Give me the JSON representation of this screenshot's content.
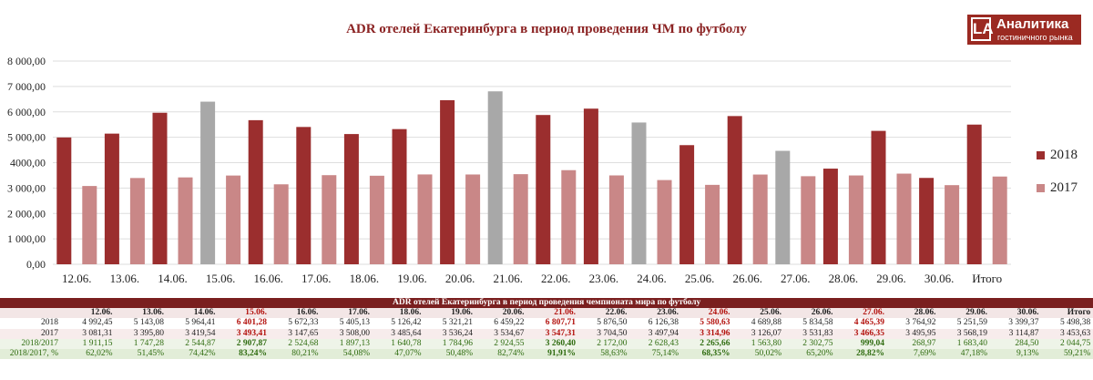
{
  "logo": {
    "mark": "LA",
    "name": "Аналитика",
    "subtitle": "гостиничного рынка"
  },
  "colors": {
    "y2018": "#9b2e2e",
    "y2017": "#c98787",
    "match_day": "#a8a8a8",
    "grid": "#dedede",
    "title": "#8b2323"
  },
  "chart_data": {
    "type": "bar",
    "title": "ADR отелей Екатеринбурга в период проведения ЧМ по футболу",
    "categories": [
      "12.06.",
      "13.06.",
      "14.06.",
      "15.06.",
      "16.06.",
      "17.06.",
      "18.06.",
      "19.06.",
      "20.06.",
      "21.06.",
      "22.06.",
      "23.06.",
      "24.06.",
      "25.06.",
      "26.06.",
      "27.06.",
      "28.06.",
      "29.06.",
      "30.06.",
      "Итого"
    ],
    "series": [
      {
        "name": "2018",
        "values": [
          4992.45,
          5143.08,
          5964.41,
          6401.28,
          5672.33,
          5405.13,
          5126.42,
          5321.21,
          6459.22,
          6807.71,
          5876.5,
          6126.38,
          5580.63,
          4689.88,
          5834.58,
          4465.39,
          3764.92,
          5251.59,
          3399.37,
          5498.38
        ]
      },
      {
        "name": "2017",
        "values": [
          3081.31,
          3395.8,
          3419.54,
          3493.41,
          3147.65,
          3508.0,
          3485.64,
          3536.24,
          3534.67,
          3547.31,
          3704.5,
          3497.94,
          3314.96,
          3126.07,
          3531.83,
          3466.35,
          3495.95,
          3568.19,
          3114.87,
          3453.63
        ]
      }
    ],
    "highlight_2018": [
      3,
      9,
      12,
      15
    ],
    "ylim": [
      0,
      8000
    ],
    "yticks": [
      "0,00",
      "1 000,00",
      "2 000,00",
      "3 000,00",
      "4000,00",
      "5 000,00",
      "6 000,00",
      "7 000,00",
      "8 000,00"
    ],
    "grid": true,
    "legend_position": "right"
  },
  "table": {
    "title": "ADR отелей Екатеринбурга в период проведения чемпионата мира по футболу",
    "headers": [
      "12.06.",
      "13.06.",
      "14.06.",
      "15.06.",
      "16.06.",
      "17.06.",
      "18.06.",
      "19.06.",
      "20.06.",
      "21.06.",
      "22.06.",
      "23.06.",
      "24.06.",
      "25.06.",
      "26.06.",
      "27.06.",
      "28.06.",
      "29.06.",
      "30.06.",
      "Итого"
    ],
    "highlight_cols": [
      3,
      9,
      12,
      15
    ],
    "rows": [
      {
        "label": "2018",
        "cells": [
          "4 992,45",
          "5 143,08",
          "5 964,41",
          "6 401,28",
          "5 672,33",
          "5 405,13",
          "5 126,42",
          "5 321,21",
          "6 459,22",
          "6 807,71",
          "5 876,50",
          "6 126,38",
          "5 580,63",
          "4 689,88",
          "5 834,58",
          "4 465,39",
          "3 764,92",
          "5 251,59",
          "3 399,37",
          "5 498,38"
        ]
      },
      {
        "label": "2017",
        "cells": [
          "3 081,31",
          "3 395,80",
          "3 419,54",
          "3 493,41",
          "3 147,65",
          "3 508,00",
          "3 485,64",
          "3 536,24",
          "3 534,67",
          "3 547,31",
          "3 704,50",
          "3 497,94",
          "3 314,96",
          "3 126,07",
          "3 531,83",
          "3 466,35",
          "3 495,95",
          "3 568,19",
          "3 114,87",
          "3 453,63"
        ]
      },
      {
        "label": "2018/2017",
        "cells": [
          "1 911,15",
          "1 747,28",
          "2 544,87",
          "2 907,87",
          "2 524,68",
          "1 897,13",
          "1 640,78",
          "1 784,96",
          "2 924,55",
          "3 260,40",
          "2 172,00",
          "2 628,43",
          "2 265,66",
          "1 563,80",
          "2 302,75",
          "999,04",
          "268,97",
          "1 683,40",
          "284,50",
          "2 044,75"
        ]
      },
      {
        "label": "2018/2017, %",
        "cells": [
          "62,02%",
          "51,45%",
          "74,42%",
          "83,24%",
          "80,21%",
          "54,08%",
          "47,07%",
          "50,48%",
          "82,74%",
          "91,91%",
          "58,63%",
          "75,14%",
          "68,35%",
          "50,02%",
          "65,20%",
          "28,82%",
          "7,69%",
          "47,18%",
          "9,13%",
          "59,21%"
        ]
      }
    ]
  }
}
